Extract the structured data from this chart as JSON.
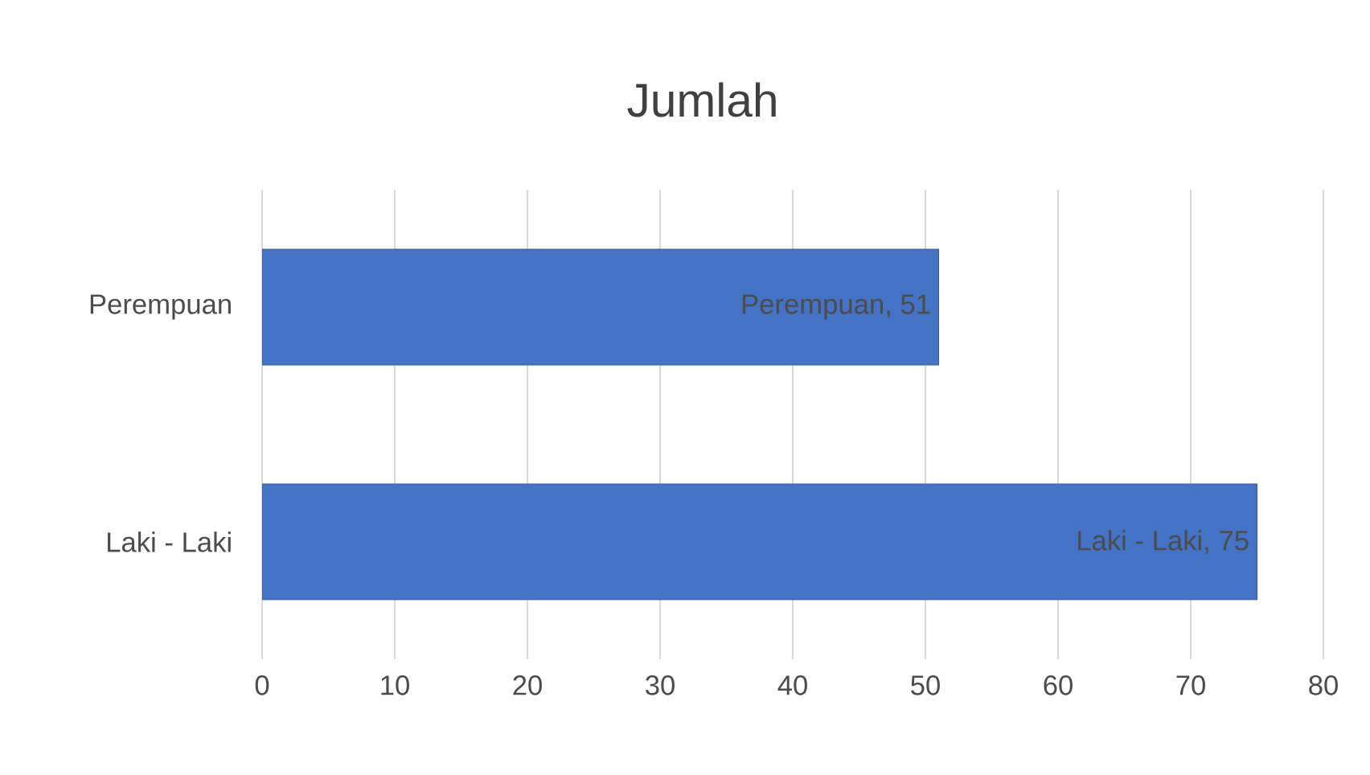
{
  "chart_data": {
    "type": "bar",
    "title": "Jumlah",
    "orientation": "horizontal",
    "categories": [
      "Perempuan",
      "Laki - Laki"
    ],
    "values": [
      51,
      75
    ],
    "value_labels": [
      "Perempuan, 51",
      "Laki - Laki, 75"
    ],
    "color": "#4472c4",
    "xlim": [
      0,
      80
    ],
    "xticks": [
      0,
      10,
      20,
      30,
      40,
      50,
      60,
      70,
      80
    ],
    "grid": "x"
  }
}
